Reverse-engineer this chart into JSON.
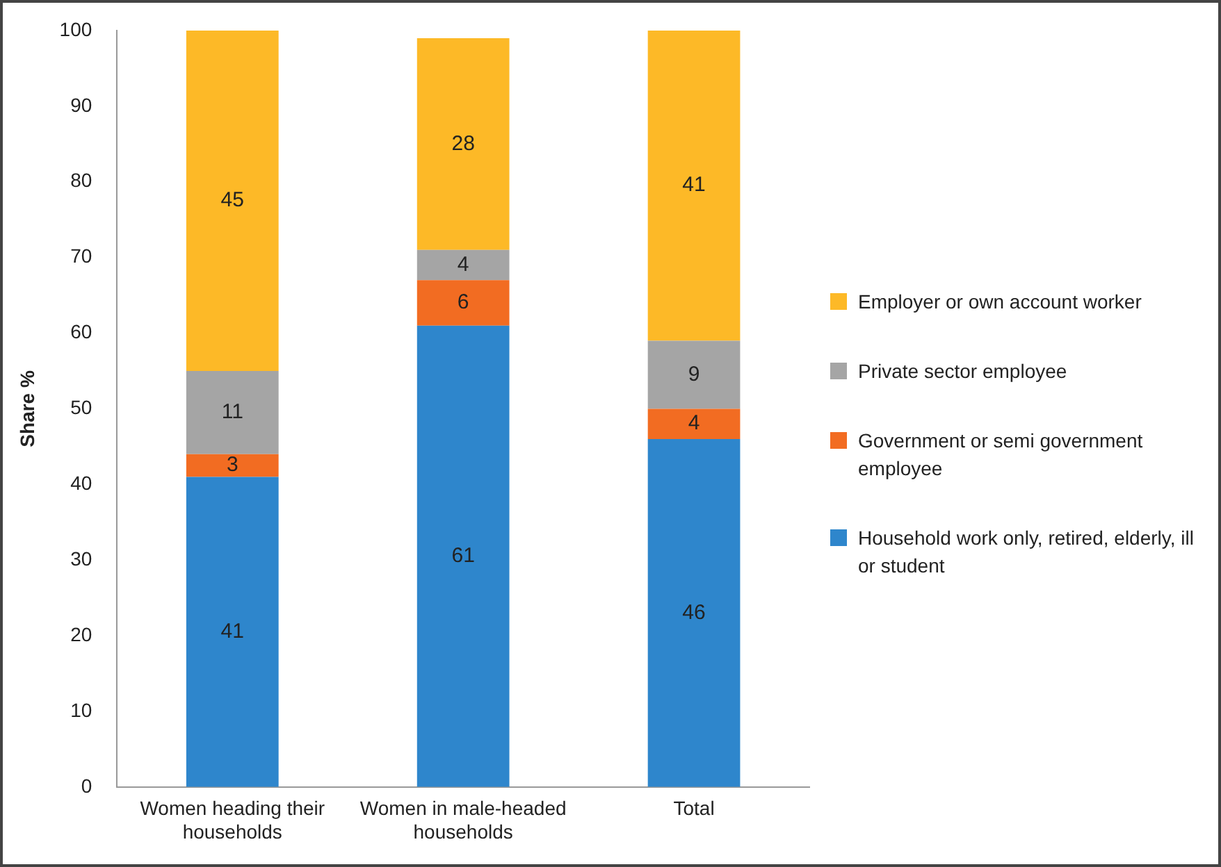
{
  "chart_data": {
    "type": "bar",
    "stacked": true,
    "ylabel": "Share %",
    "categories": [
      "Women heading their households",
      "Women in male-headed households",
      "Total"
    ],
    "series": [
      {
        "name": "Household work only, retired, elderly, ill or student",
        "color": "#2e86cc",
        "values": [
          41,
          61,
          46
        ]
      },
      {
        "name": "Government or semi government employee",
        "color": "#f26c22",
        "values": [
          3,
          6,
          4
        ]
      },
      {
        "name": "Private sector employee",
        "color": "#a5a5a5",
        "values": [
          11,
          4,
          9
        ]
      },
      {
        "name": "Employer or own account worker",
        "color": "#fdb927",
        "values": [
          45,
          28,
          41
        ]
      }
    ],
    "ylim": [
      0,
      100
    ],
    "yticks": [
      0,
      10,
      20,
      30,
      40,
      50,
      60,
      70,
      80,
      90,
      100
    ],
    "grid": false,
    "legend": "right",
    "data_labels": true
  }
}
